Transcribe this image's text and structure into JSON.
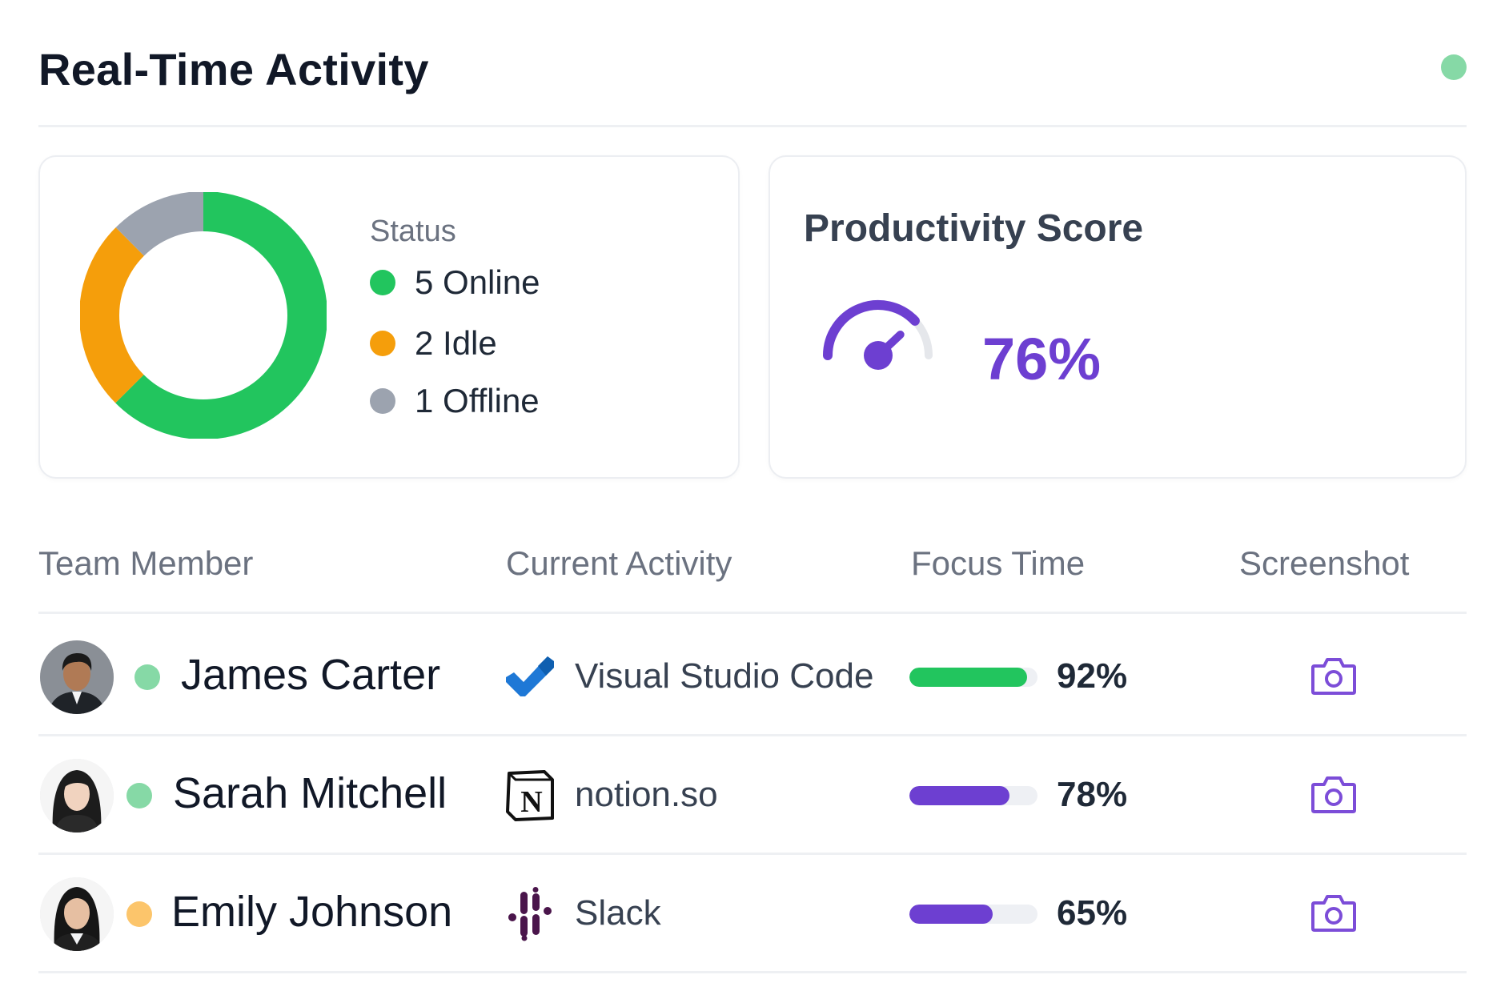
{
  "header": {
    "title": "Real-Time Activity",
    "live_indicator_color": "#86d9a6"
  },
  "status_card": {
    "legend_title": "Status",
    "items": [
      {
        "label": "5 Online",
        "count": 5,
        "color": "#22c55e"
      },
      {
        "label": "2 Idle",
        "count": 2,
        "color": "#f59e0b"
      },
      {
        "label": "1 Offline",
        "count": 1,
        "color": "#9ca3af"
      }
    ]
  },
  "productivity_card": {
    "title": "Productivity Score",
    "value_label": "76%",
    "value": 0.76,
    "accent": "#6d3fd1"
  },
  "table": {
    "headers": [
      "Team Member",
      "Current Activity",
      "Focus Time",
      "Screenshot"
    ],
    "rows": [
      {
        "name": "James Carter",
        "status": "online",
        "status_color": "#86d9a6",
        "app": "Visual Studio Code",
        "app_icon": "vscode-icon",
        "focus_label": "92%",
        "focus": 0.92,
        "bar_color": "#22c55e"
      },
      {
        "name": "Sarah Mitchell",
        "status": "online",
        "status_color": "#86d9a6",
        "app": "notion.so",
        "app_icon": "notion-icon",
        "focus_label": "78%",
        "focus": 0.78,
        "bar_color": "#6d3fd1"
      },
      {
        "name": "Emily Johnson",
        "status": "idle",
        "status_color": "#fcc56b",
        "app": "Slack",
        "app_icon": "slack-icon",
        "focus_label": "65%",
        "focus": 0.65,
        "bar_color": "#6d3fd1"
      }
    ]
  }
}
